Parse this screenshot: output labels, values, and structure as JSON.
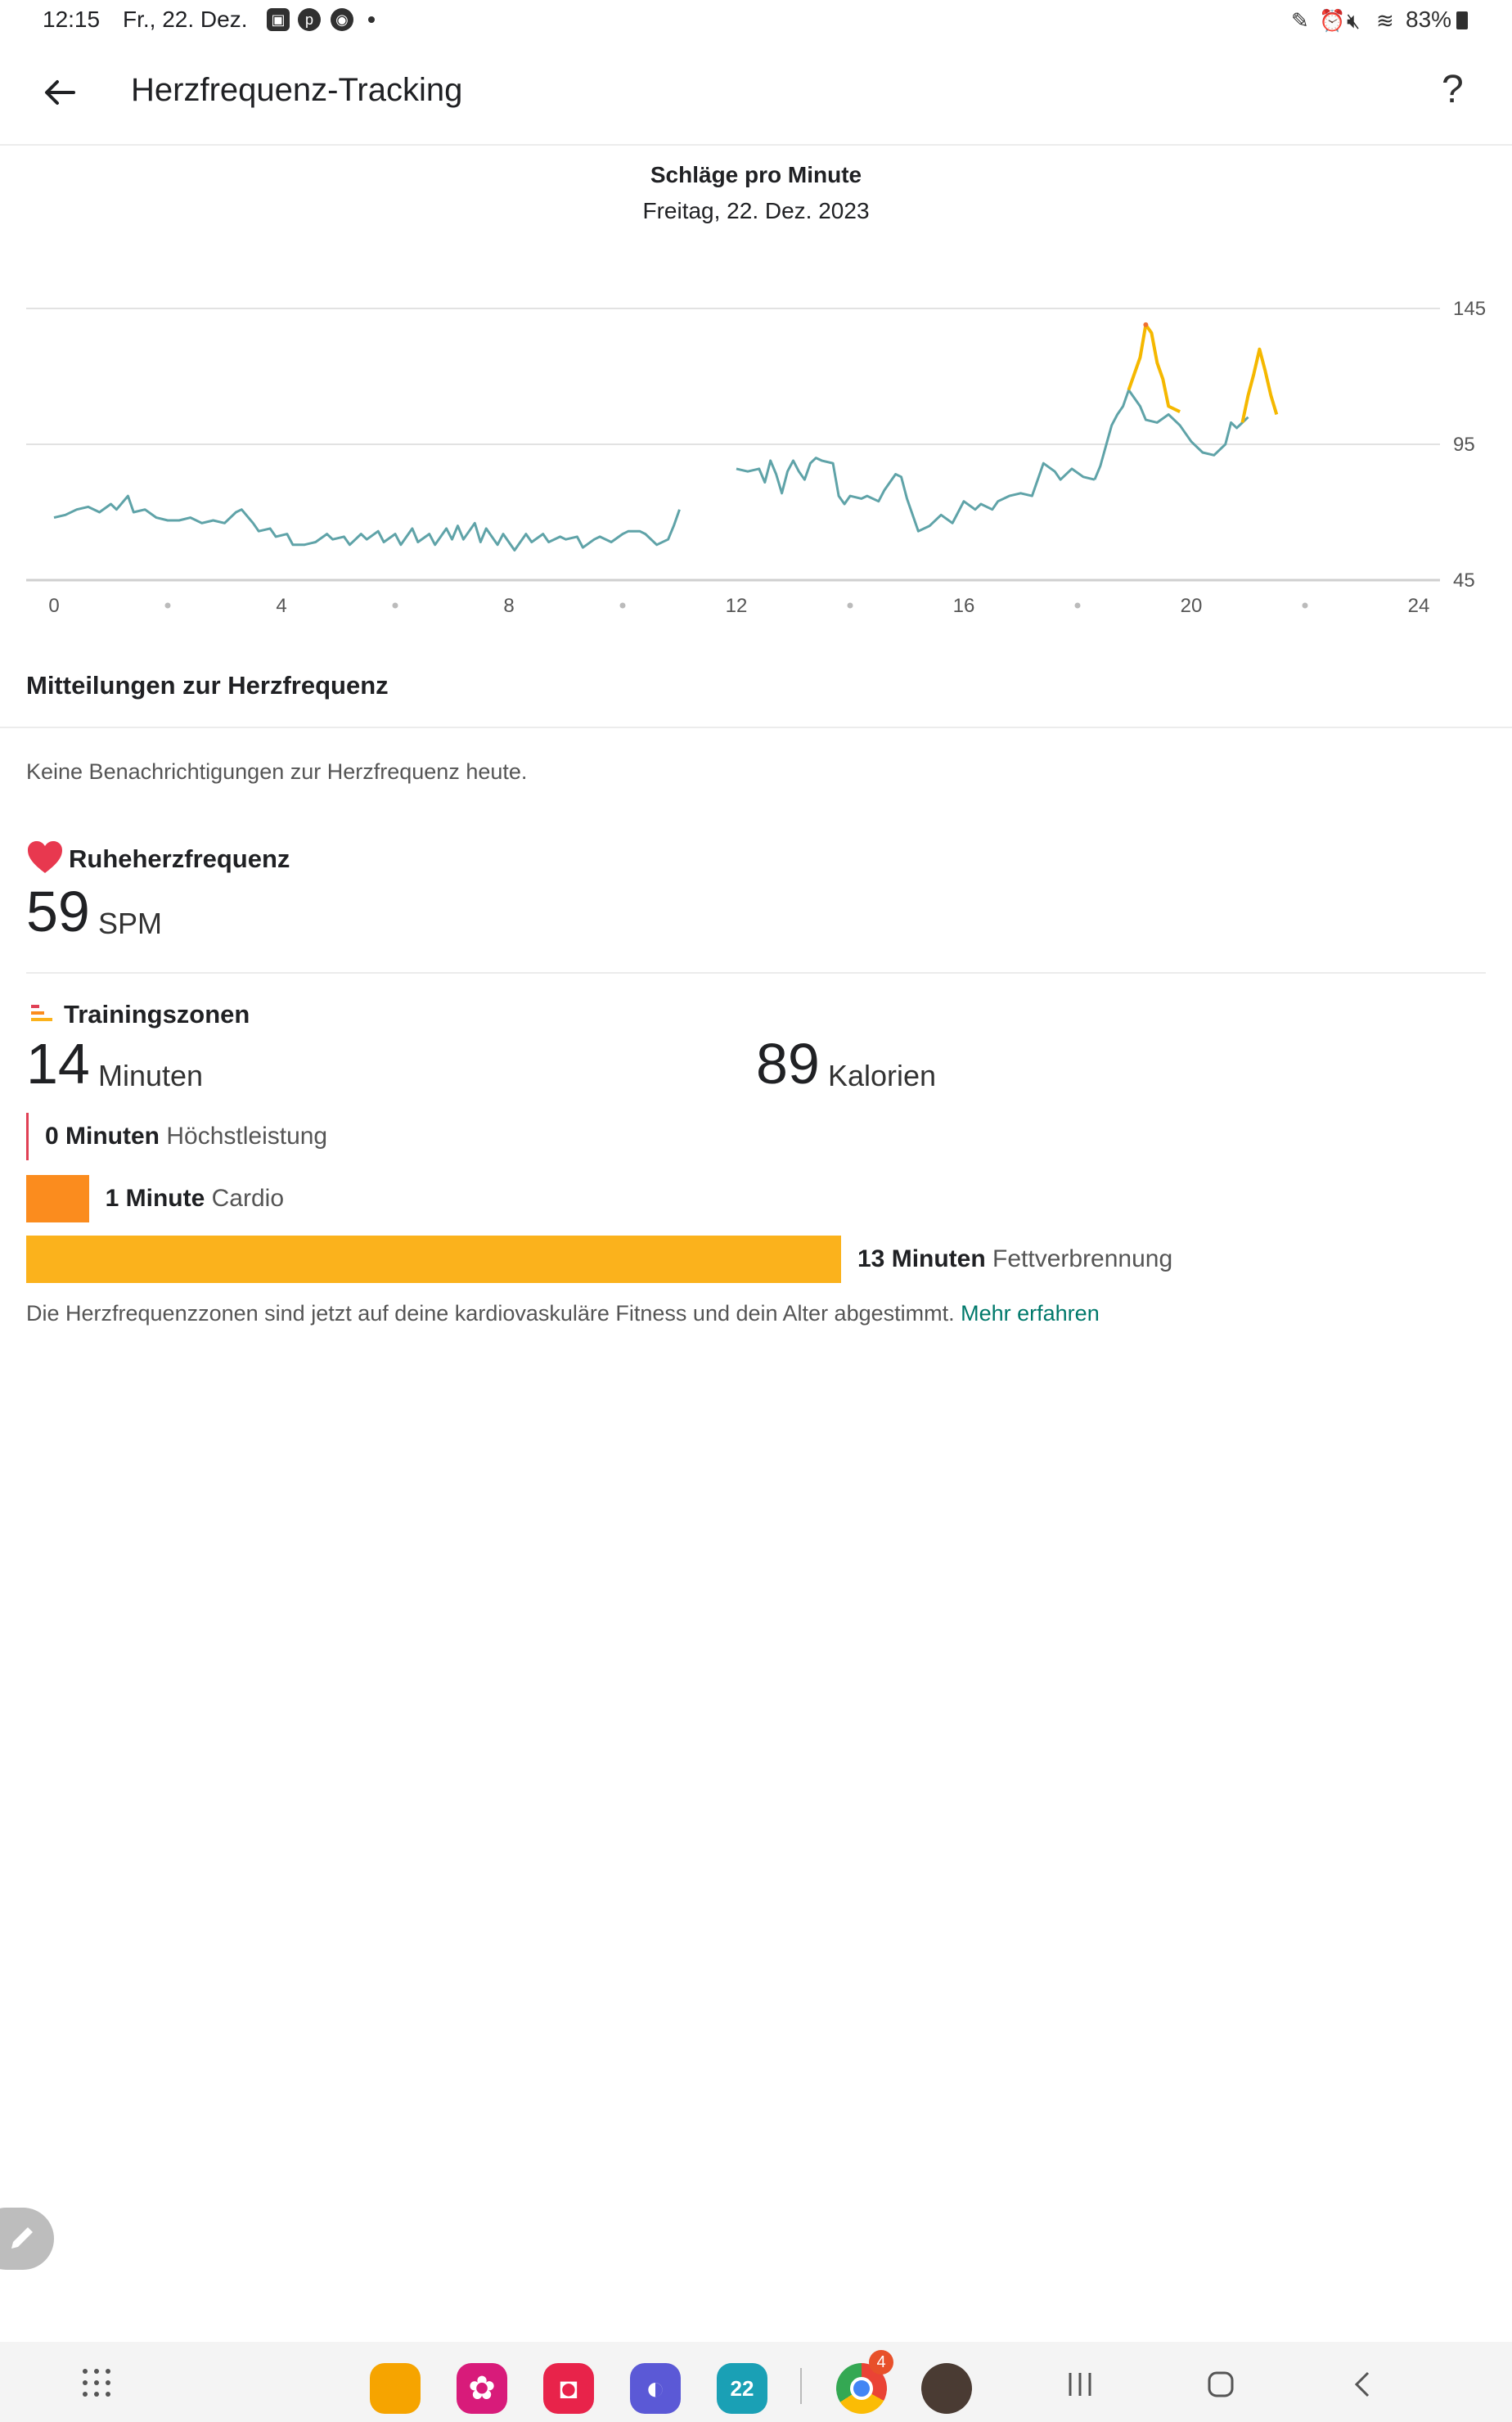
{
  "status_bar": {
    "time": "12:15",
    "date": "Fr., 22. Dez.",
    "battery": "83%"
  },
  "app_bar": {
    "title": "Herzfrequenz-Tracking",
    "back_icon": "arrow-left-icon",
    "help_label": "?"
  },
  "chart_data": {
    "type": "line",
    "title": "Schläge pro Minute",
    "subtitle": "Freitag, 22. Dez. 2023",
    "x_ticks": [
      "0",
      "4",
      "8",
      "12",
      "16",
      "20",
      "24"
    ],
    "y_ticks": [
      "145",
      "95",
      "45"
    ],
    "xlim": [
      0,
      24
    ],
    "ylim": [
      45,
      145
    ],
    "grid": true,
    "colors": {
      "line": "#5fa3a8",
      "peak": "#f5b800",
      "peak_top": "#f07030"
    },
    "segments": [
      [
        [
          0.0,
          68
        ],
        [
          0.2,
          69
        ],
        [
          0.4,
          71
        ],
        [
          0.6,
          72
        ],
        [
          0.8,
          70
        ],
        [
          1.0,
          73
        ],
        [
          1.1,
          71
        ],
        [
          1.3,
          76
        ],
        [
          1.4,
          70
        ],
        [
          1.6,
          71
        ],
        [
          1.8,
          68
        ],
        [
          2.0,
          67
        ],
        [
          2.2,
          67
        ],
        [
          2.4,
          68
        ],
        [
          2.6,
          66
        ],
        [
          2.8,
          67
        ],
        [
          3.0,
          66
        ],
        [
          3.2,
          70
        ],
        [
          3.3,
          71
        ],
        [
          3.5,
          66
        ],
        [
          3.6,
          63
        ],
        [
          3.8,
          64
        ],
        [
          3.9,
          61
        ],
        [
          4.1,
          62
        ],
        [
          4.2,
          58
        ],
        [
          4.4,
          58
        ],
        [
          4.6,
          59
        ],
        [
          4.8,
          62
        ],
        [
          4.9,
          60
        ],
        [
          5.1,
          61
        ],
        [
          5.2,
          58
        ],
        [
          5.4,
          62
        ],
        [
          5.5,
          60
        ],
        [
          5.7,
          63
        ],
        [
          5.8,
          59
        ],
        [
          6.0,
          62
        ],
        [
          6.1,
          58
        ],
        [
          6.3,
          64
        ],
        [
          6.4,
          59
        ],
        [
          6.6,
          62
        ],
        [
          6.7,
          58
        ],
        [
          6.9,
          64
        ],
        [
          7.0,
          60
        ],
        [
          7.1,
          65
        ],
        [
          7.2,
          60
        ],
        [
          7.4,
          66
        ],
        [
          7.5,
          59
        ],
        [
          7.6,
          64
        ],
        [
          7.8,
          58
        ],
        [
          7.9,
          62
        ],
        [
          8.1,
          56
        ],
        [
          8.3,
          62
        ],
        [
          8.4,
          59
        ],
        [
          8.6,
          62
        ],
        [
          8.7,
          59
        ],
        [
          8.9,
          61
        ],
        [
          9.0,
          60
        ],
        [
          9.2,
          61
        ],
        [
          9.3,
          57
        ],
        [
          9.5,
          60
        ],
        [
          9.6,
          61
        ],
        [
          9.8,
          59
        ],
        [
          10.0,
          62
        ],
        [
          10.1,
          63
        ],
        [
          10.3,
          63
        ],
        [
          10.4,
          62
        ],
        [
          10.6,
          58
        ],
        [
          10.8,
          60
        ],
        [
          10.9,
          65
        ],
        [
          11.0,
          71
        ]
      ],
      [
        [
          12.0,
          86
        ],
        [
          12.2,
          85
        ],
        [
          12.4,
          86
        ],
        [
          12.5,
          81
        ],
        [
          12.6,
          89
        ],
        [
          12.7,
          84
        ],
        [
          12.8,
          77
        ],
        [
          12.9,
          85
        ],
        [
          13.0,
          89
        ],
        [
          13.1,
          85
        ],
        [
          13.2,
          82
        ],
        [
          13.3,
          88
        ],
        [
          13.4,
          90
        ],
        [
          13.5,
          89
        ],
        [
          13.7,
          88
        ],
        [
          13.8,
          76
        ],
        [
          13.9,
          73
        ],
        [
          14.0,
          76
        ],
        [
          14.2,
          75
        ],
        [
          14.3,
          76
        ],
        [
          14.5,
          74
        ],
        [
          14.6,
          78
        ],
        [
          14.8,
          84
        ],
        [
          14.9,
          83
        ],
        [
          15.0,
          75
        ],
        [
          15.2,
          63
        ],
        [
          15.4,
          65
        ],
        [
          15.6,
          69
        ],
        [
          15.8,
          66
        ],
        [
          16.0,
          74
        ],
        [
          16.2,
          71
        ],
        [
          16.3,
          73
        ],
        [
          16.5,
          71
        ],
        [
          16.6,
          74
        ],
        [
          16.8,
          76
        ],
        [
          17.0,
          77
        ],
        [
          17.2,
          76
        ],
        [
          17.4,
          88
        ],
        [
          17.6,
          85
        ],
        [
          17.7,
          82
        ],
        [
          17.9,
          86
        ],
        [
          18.1,
          83
        ],
        [
          18.3,
          82
        ]
      ],
      [
        [
          18.3,
          82
        ],
        [
          18.4,
          87
        ],
        [
          18.6,
          102
        ],
        [
          18.7,
          106
        ],
        [
          18.8,
          109
        ],
        [
          18.9,
          115
        ],
        [
          19.1,
          109
        ],
        [
          19.2,
          104
        ],
        [
          19.4,
          103
        ],
        [
          19.6,
          106
        ],
        [
          19.8,
          102
        ],
        [
          20.0,
          96
        ],
        [
          20.2,
          92
        ],
        [
          20.4,
          91
        ],
        [
          20.6,
          95
        ],
        [
          20.7,
          103
        ],
        [
          20.8,
          101
        ],
        [
          20.9,
          103
        ],
        [
          21.0,
          105
        ]
      ]
    ],
    "peaks": [
      [
        [
          18.9,
          115
        ],
        [
          19.1,
          127
        ],
        [
          19.2,
          139
        ],
        [
          19.3,
          136
        ],
        [
          19.4,
          125
        ],
        [
          19.5,
          119
        ],
        [
          19.6,
          109
        ],
        [
          19.8,
          107
        ]
      ],
      [
        [
          20.9,
          103
        ],
        [
          21.0,
          113
        ],
        [
          21.1,
          121
        ],
        [
          21.2,
          130
        ],
        [
          21.3,
          122
        ],
        [
          21.4,
          113
        ],
        [
          21.5,
          106
        ]
      ]
    ],
    "chart_x_pixel_note": ""
  },
  "notifications": {
    "title": "Mitteilungen zur Herzfrequenz",
    "text": "Keine Benachrichtigungen zur Herzfrequenz heute."
  },
  "resting": {
    "title": "Ruheherzfrequenz",
    "value": "59",
    "unit": "SPM",
    "icon": "heart-icon",
    "icon_color": "#e8384f"
  },
  "training": {
    "title": "Trainingszonen",
    "icon": "zones-icon",
    "minutes_value": "14",
    "minutes_unit": "Minuten",
    "calories_value": "89",
    "calories_unit": "Kalorien",
    "zones": [
      {
        "amount": "0 Minuten",
        "name": "Höchstleistung",
        "minutes": 0,
        "color": "#e04055"
      },
      {
        "amount": "1 Minute",
        "name": "Cardio",
        "minutes": 1,
        "color": "#fb8c1e"
      },
      {
        "amount": "13 Minuten",
        "name": "Fettverbrennung",
        "minutes": 13,
        "color": "#fbb21c"
      }
    ],
    "footnote": "Die Herzfrequenzzonen sind jetzt auf deine kardiovaskuläre Fitness und dein Alter abgestimmt.",
    "link": "Mehr erfahren"
  },
  "fab": {
    "icon": "pencil-icon"
  },
  "nav_bar": {
    "apps": [
      {
        "name": "apps-grid-icon"
      },
      {
        "name": "files-app-icon",
        "color": "#f6a400"
      },
      {
        "name": "flower-app-icon",
        "color": "#d81b7a"
      },
      {
        "name": "camera-app-icon",
        "color": "#e8234a"
      },
      {
        "name": "browser-app-icon",
        "color": "#5b59d6"
      },
      {
        "name": "calendar-app-icon",
        "color": "#1aa0b5",
        "label": "22"
      },
      {
        "name": "chrome-app-icon",
        "badge": "4"
      },
      {
        "name": "avatar-app-icon",
        "color": "#4a3b33"
      }
    ],
    "buttons": {
      "recents": "recents-icon",
      "home": "home-icon",
      "back": "back-icon"
    }
  }
}
